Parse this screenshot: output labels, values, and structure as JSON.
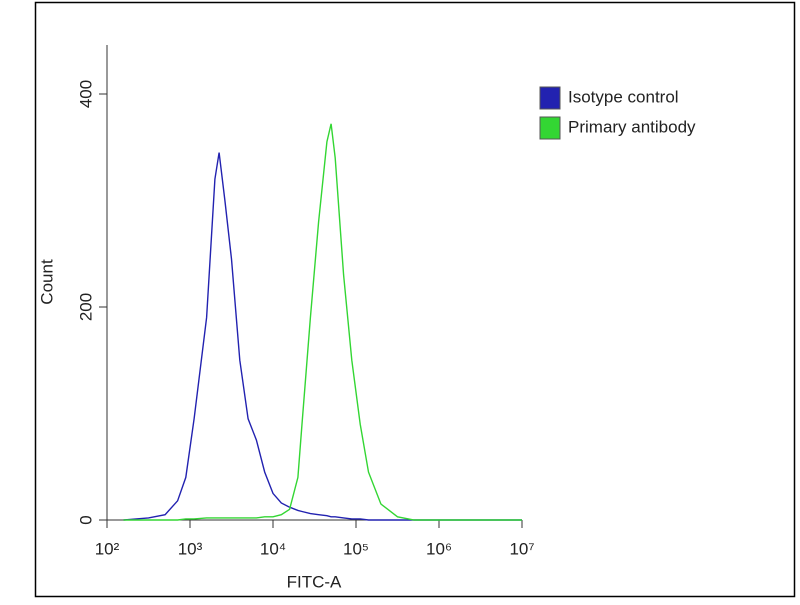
{
  "chart_data": {
    "type": "line",
    "x_label": "FITC-A",
    "y_label": "Count",
    "log_x": true,
    "xlim": [
      100,
      10000000
    ],
    "xticks": [
      {
        "value": 100,
        "label": "10²"
      },
      {
        "value": 1000,
        "label": "10³"
      },
      {
        "value": 10000,
        "label": "10⁴"
      },
      {
        "value": 100000,
        "label": "10⁵"
      },
      {
        "value": 1000000,
        "label": "10⁶"
      },
      {
        "value": 10000000,
        "label": "10⁷"
      }
    ],
    "ylim": [
      0,
      446
    ],
    "yticks": [
      0,
      200,
      400
    ],
    "legend": "top-right-outside",
    "x": [
      158,
      316,
      501,
      708,
      891,
      1122,
      1585,
      1995,
      2239,
      2630,
      3162,
      3981,
      5012,
      6310,
      7943,
      10000,
      12589,
      15849,
      19953,
      22387,
      28184,
      35481,
      44668,
      50119,
      56234,
      70795,
      89125,
      112202,
      141254,
      199526,
      316228,
      501187,
      1000000,
      10000000
    ],
    "series": [
      {
        "name": "Isotype control",
        "color": "#2222b0",
        "values": [
          0,
          2,
          5,
          18,
          40,
          95,
          190,
          320,
          345,
          300,
          245,
          150,
          95,
          75,
          45,
          25,
          16,
          12,
          9,
          8,
          6,
          5,
          4,
          3,
          3,
          2,
          1,
          1,
          0,
          0,
          0,
          0,
          0,
          0
        ]
      },
      {
        "name": "Primary antibody",
        "color": "#33d633",
        "values": [
          0,
          0,
          0,
          0,
          1,
          1,
          2,
          2,
          2,
          2,
          2,
          2,
          2,
          2,
          3,
          3,
          5,
          10,
          40,
          90,
          190,
          280,
          355,
          372,
          340,
          230,
          150,
          90,
          45,
          15,
          3,
          0,
          0,
          0
        ]
      }
    ]
  }
}
